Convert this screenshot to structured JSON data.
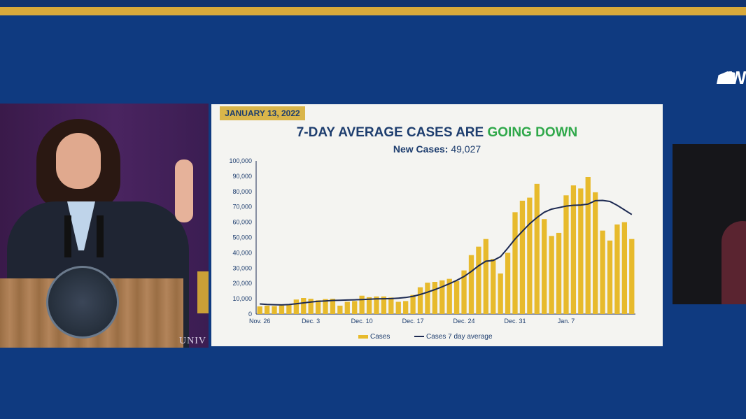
{
  "slide": {
    "date": "JANUARY 13, 2022",
    "title_main": "7-DAY AVERAGE CASES ARE ",
    "title_accent": "GOING DOWN",
    "subtitle_label": "New Cases:",
    "subtitle_value": " 49,027"
  },
  "backdrop": {
    "university_text": "UNIV",
    "logo_text": "WE"
  },
  "colors": {
    "background": "#0f3a80",
    "gold": "#d9a93a",
    "bar": "#e7ba2c",
    "line": "#1d2a52",
    "title": "#1d3d6e",
    "accent": "#2fa84a"
  },
  "chart_data": {
    "type": "bar",
    "ylim": [
      0,
      100000
    ],
    "y_ticks": [
      "0",
      "10,000",
      "20,000",
      "30,000",
      "40,000",
      "50,000",
      "60,000",
      "70,000",
      "80,000",
      "90,000",
      "100,000"
    ],
    "x_tick_labels": [
      {
        "index": 0,
        "label": "Nov. 26"
      },
      {
        "index": 7,
        "label": "Dec. 3"
      },
      {
        "index": 14,
        "label": "Dec. 10"
      },
      {
        "index": 21,
        "label": "Dec. 17"
      },
      {
        "index": 28,
        "label": "Dec. 24"
      },
      {
        "index": 35,
        "label": "Dec. 31"
      },
      {
        "index": 42,
        "label": "Jan. 7"
      }
    ],
    "legend": [
      "Cases",
      "Cases 7 day average"
    ],
    "series": [
      {
        "name": "Cases",
        "type": "bar",
        "values": [
          5000,
          5500,
          5200,
          5600,
          6000,
          9500,
          10500,
          10000,
          9000,
          9800,
          10000,
          5500,
          8000,
          8500,
          12000,
          11000,
          11500,
          11500,
          10800,
          8000,
          8500,
          12500,
          17500,
          20500,
          21000,
          22000,
          23000,
          21500,
          28500,
          38500,
          44000,
          49000,
          36000,
          26500,
          40000,
          66500,
          74000,
          76000,
          85000,
          62000,
          51000,
          53000,
          77500,
          84000,
          82000,
          89500,
          79500,
          54500,
          48000,
          58500,
          60000,
          49000
        ]
      },
      {
        "name": "Cases 7 day average",
        "type": "line",
        "values": [
          6600,
          6300,
          6100,
          6000,
          6200,
          6700,
          7300,
          7900,
          8300,
          8600,
          8900,
          9000,
          9200,
          9300,
          9500,
          9700,
          9900,
          10000,
          10100,
          10400,
          10800,
          11600,
          12800,
          14300,
          16000,
          17800,
          19800,
          22000,
          24500,
          27800,
          31500,
          34500,
          35000,
          37500,
          43000,
          49000,
          54000,
          59000,
          63000,
          66500,
          68500,
          69500,
          70500,
          71000,
          71200,
          71800,
          74000,
          74200,
          73500,
          71000,
          68000,
          65000
        ]
      }
    ]
  }
}
